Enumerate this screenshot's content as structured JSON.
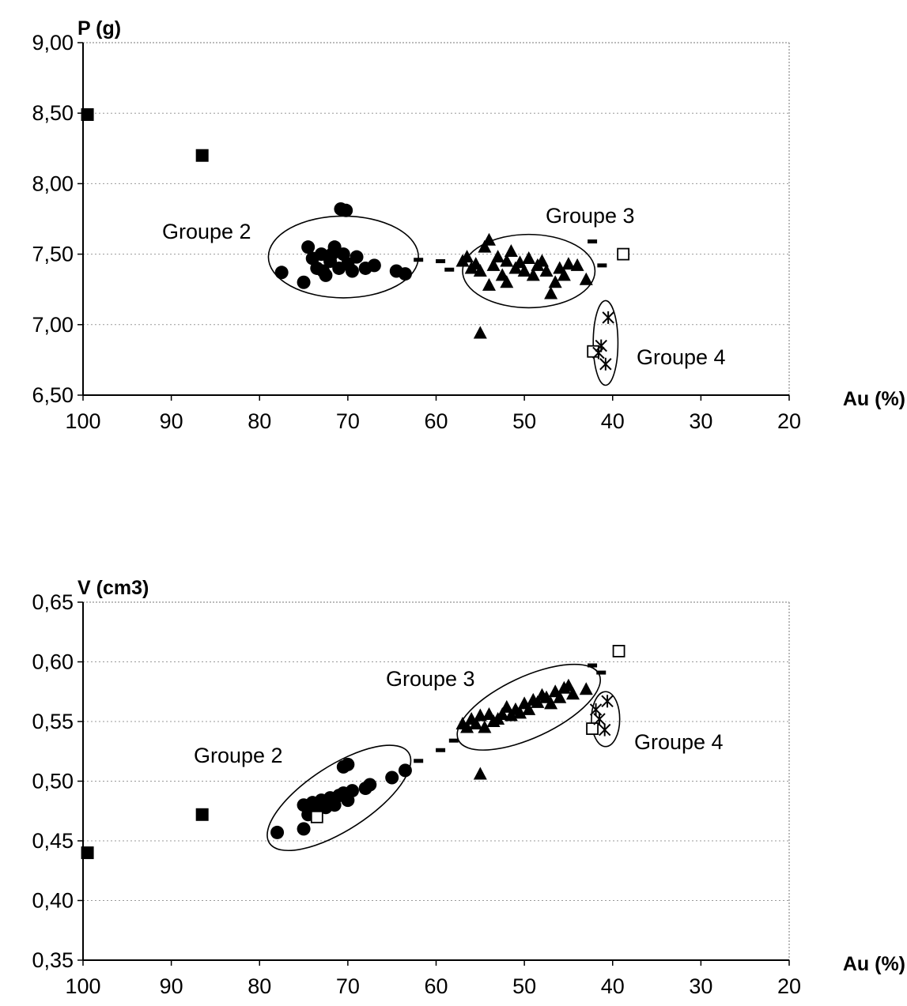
{
  "chart_data": [
    {
      "type": "scatter",
      "title": "",
      "xlabel": "Au (%)",
      "ylabel": "P (g)",
      "xlim": [
        100,
        20
      ],
      "ylim": [
        6.5,
        9.0
      ],
      "x_ticks": [
        "100",
        "90",
        "80",
        "70",
        "60",
        "50",
        "40",
        "30",
        "20"
      ],
      "y_ticks": [
        "9,00",
        "8,50",
        "8,00",
        "7,50",
        "7,00",
        "6,50"
      ],
      "grid": "horizontal dotted",
      "series": [
        {
          "marker": "filled-square",
          "points": [
            [
              99.5,
              8.49
            ],
            [
              86.5,
              8.2
            ]
          ]
        },
        {
          "marker": "filled-circle",
          "points": [
            [
              77.5,
              7.37
            ],
            [
              75,
              7.3
            ],
            [
              74.5,
              7.55
            ],
            [
              74,
              7.47
            ],
            [
              73.5,
              7.4
            ],
            [
              73,
              7.5
            ],
            [
              72.5,
              7.35
            ],
            [
              72,
              7.45
            ],
            [
              71.5,
              7.55
            ],
            [
              71,
              7.4
            ],
            [
              70.8,
              7.82
            ],
            [
              70.2,
              7.81
            ],
            [
              70.5,
              7.5
            ],
            [
              70,
              7.43
            ],
            [
              69.5,
              7.38
            ],
            [
              69,
              7.48
            ],
            [
              68,
              7.4
            ],
            [
              67,
              7.42
            ],
            [
              64.5,
              7.38
            ],
            [
              63.5,
              7.36
            ],
            [
              72.8,
              7.38
            ],
            [
              71.8,
              7.5
            ]
          ]
        },
        {
          "marker": "filled-triangle",
          "points": [
            [
              57,
              7.45
            ],
            [
              56.5,
              7.48
            ],
            [
              56,
              7.4
            ],
            [
              55.5,
              7.43
            ],
            [
              55,
              7.38
            ],
            [
              54.5,
              7.55
            ],
            [
              54,
              7.6
            ],
            [
              53.5,
              7.42
            ],
            [
              53,
              7.48
            ],
            [
              52.5,
              7.35
            ],
            [
              52,
              7.45
            ],
            [
              51.5,
              7.52
            ],
            [
              51,
              7.4
            ],
            [
              50.5,
              7.44
            ],
            [
              50,
              7.38
            ],
            [
              49.5,
              7.47
            ],
            [
              49,
              7.35
            ],
            [
              48.5,
              7.42
            ],
            [
              48,
              7.45
            ],
            [
              47.5,
              7.38
            ],
            [
              47,
              7.22
            ],
            [
              46.5,
              7.3
            ],
            [
              46,
              7.4
            ],
            [
              45.5,
              7.35
            ],
            [
              45,
              7.43
            ],
            [
              44,
              7.42
            ],
            [
              43,
              7.32
            ],
            [
              55,
              6.94
            ],
            [
              54,
              7.28
            ],
            [
              52,
              7.3
            ]
          ]
        },
        {
          "marker": "dash",
          "points": [
            [
              62,
              7.46
            ],
            [
              59.5,
              7.45
            ],
            [
              58.5,
              7.39
            ],
            [
              42.3,
              7.59
            ],
            [
              41.2,
              7.42
            ]
          ]
        },
        {
          "marker": "open-square",
          "points": [
            [
              38.8,
              7.5
            ],
            [
              42.2,
              6.81
            ]
          ]
        },
        {
          "marker": "star",
          "points": [
            [
              40.5,
              7.05
            ],
            [
              41.3,
              6.85
            ],
            [
              40.8,
              6.72
            ],
            [
              41.6,
              6.8
            ]
          ]
        }
      ],
      "annotations": [
        {
          "label": "Groupe 2",
          "ellipse": {
            "cx": 70.5,
            "cy": 7.48,
            "rx": 8.5,
            "ry": 0.29
          }
        },
        {
          "label": "Groupe 3",
          "ellipse": {
            "cx": 49.5,
            "cy": 7.38,
            "rx": 7.5,
            "ry": 0.26
          }
        },
        {
          "label": "Groupe 4",
          "ellipse": {
            "cx": 40.8,
            "cy": 6.87,
            "rx": 1.4,
            "ry": 0.3
          }
        }
      ]
    },
    {
      "type": "scatter",
      "title": "",
      "xlabel": "Au (%)",
      "ylabel": "V (cm3)",
      "xlim": [
        100,
        20
      ],
      "ylim": [
        0.35,
        0.65
      ],
      "x_ticks": [
        "100",
        "90",
        "80",
        "70",
        "60",
        "50",
        "40",
        "30",
        "20"
      ],
      "y_ticks": [
        "0,65",
        "0,60",
        "0,55",
        "0,50",
        "0,45",
        "0,40",
        "0,35"
      ],
      "grid": "horizontal dotted",
      "series": [
        {
          "marker": "filled-square",
          "points": [
            [
              99.5,
              0.44
            ],
            [
              86.5,
              0.472
            ]
          ]
        },
        {
          "marker": "filled-circle",
          "points": [
            [
              78,
              0.457
            ],
            [
              75,
              0.46
            ],
            [
              75,
              0.48
            ],
            [
              74.5,
              0.472
            ],
            [
              74,
              0.482
            ],
            [
              73.5,
              0.476
            ],
            [
              73,
              0.484
            ],
            [
              72.5,
              0.478
            ],
            [
              72,
              0.486
            ],
            [
              71.5,
              0.48
            ],
            [
              71,
              0.488
            ],
            [
              70.5,
              0.512
            ],
            [
              70,
              0.514
            ],
            [
              70.5,
              0.49
            ],
            [
              70,
              0.484
            ],
            [
              69.5,
              0.492
            ],
            [
              68,
              0.494
            ],
            [
              67.5,
              0.497
            ],
            [
              65,
              0.503
            ],
            [
              63.5,
              0.509
            ]
          ]
        },
        {
          "marker": "filled-triangle",
          "points": [
            [
              57,
              0.548
            ],
            [
              56.5,
              0.545
            ],
            [
              56,
              0.552
            ],
            [
              55.5,
              0.548
            ],
            [
              55,
              0.555
            ],
            [
              54.5,
              0.545
            ],
            [
              54,
              0.556
            ],
            [
              53.5,
              0.55
            ],
            [
              53,
              0.552
            ],
            [
              52.5,
              0.556
            ],
            [
              52,
              0.562
            ],
            [
              51.5,
              0.555
            ],
            [
              51,
              0.56
            ],
            [
              50.5,
              0.557
            ],
            [
              50,
              0.565
            ],
            [
              49.5,
              0.56
            ],
            [
              49,
              0.568
            ],
            [
              48.5,
              0.566
            ],
            [
              48,
              0.572
            ],
            [
              47.5,
              0.57
            ],
            [
              47,
              0.565
            ],
            [
              46.5,
              0.575
            ],
            [
              46,
              0.57
            ],
            [
              45.5,
              0.578
            ],
            [
              45,
              0.58
            ],
            [
              44.5,
              0.573
            ],
            [
              43,
              0.577
            ],
            [
              55,
              0.506
            ]
          ]
        },
        {
          "marker": "dash",
          "points": [
            [
              62,
              0.517
            ],
            [
              59.5,
              0.526
            ],
            [
              58,
              0.534
            ],
            [
              42.3,
              0.597
            ],
            [
              41.3,
              0.591
            ]
          ]
        },
        {
          "marker": "open-square",
          "points": [
            [
              39.3,
              0.609
            ],
            [
              42.3,
              0.544
            ],
            [
              73.5,
              0.47
            ]
          ]
        },
        {
          "marker": "star",
          "points": [
            [
              40.6,
              0.567
            ],
            [
              41.5,
              0.552
            ],
            [
              40.9,
              0.543
            ],
            [
              41.9,
              0.56
            ]
          ]
        }
      ],
      "annotations": [
        {
          "label": "Groupe 2",
          "ellipse": {
            "cx": 71.0,
            "cy": 0.486,
            "rx": 9.4,
            "ry": 0.027,
            "angle": -33
          }
        },
        {
          "label": "Groupe 3",
          "ellipse": {
            "cx": 49.5,
            "cy": 0.562,
            "rx": 8.8,
            "ry": 0.0255,
            "angle": -25
          }
        },
        {
          "label": "Groupe 4",
          "ellipse": {
            "cx": 40.8,
            "cy": 0.552,
            "rx": 1.6,
            "ry": 0.023
          }
        }
      ]
    }
  ]
}
